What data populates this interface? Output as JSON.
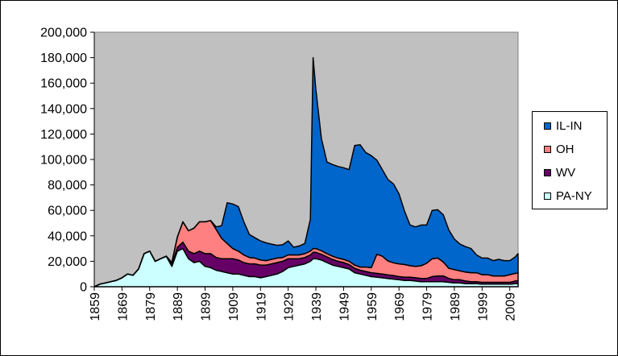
{
  "chart_data": {
    "type": "area",
    "stacked": true,
    "xlabel": "",
    "ylabel": "",
    "ylim": [
      0,
      200000
    ],
    "xlim": [
      1859,
      2012
    ],
    "grid": false,
    "legend_position": "right",
    "plot_background": "#c0c0c0",
    "y_ticks": [
      "0",
      "20,000",
      "40,000",
      "60,000",
      "80,000",
      "100,000",
      "120,000",
      "140,000",
      "160,000",
      "180,000",
      "200,000"
    ],
    "x_ticks": [
      "1859",
      "1869",
      "1879",
      "1889",
      "1899",
      "1909",
      "1919",
      "1929",
      "1939",
      "1949",
      "1959",
      "1969",
      "1979",
      "1989",
      "1999",
      "2009"
    ],
    "x": [
      1859,
      1861,
      1863,
      1865,
      1867,
      1869,
      1871,
      1873,
      1875,
      1877,
      1879,
      1881,
      1883,
      1885,
      1887,
      1889,
      1891,
      1893,
      1895,
      1897,
      1899,
      1901,
      1903,
      1905,
      1907,
      1909,
      1911,
      1913,
      1915,
      1917,
      1919,
      1921,
      1923,
      1925,
      1927,
      1929,
      1931,
      1933,
      1935,
      1937,
      1938,
      1939,
      1941,
      1943,
      1945,
      1947,
      1949,
      1951,
      1953,
      1955,
      1957,
      1959,
      1961,
      1963,
      1965,
      1967,
      1969,
      1971,
      1973,
      1975,
      1977,
      1979,
      1981,
      1983,
      1985,
      1987,
      1989,
      1991,
      1993,
      1995,
      1997,
      1999,
      2001,
      2003,
      2005,
      2007,
      2009,
      2011,
      2012
    ],
    "series": [
      {
        "name": "PA-NY",
        "color": "#ccffff",
        "values": [
          0,
          2000,
          3000,
          4000,
          5000,
          7000,
          10000,
          9000,
          14000,
          26000,
          28000,
          20000,
          22000,
          24000,
          16000,
          28000,
          30000,
          22000,
          19000,
          20000,
          16000,
          15000,
          13000,
          12000,
          11000,
          10000,
          10000,
          9000,
          8000,
          8000,
          7000,
          8000,
          9000,
          10000,
          12000,
          15000,
          16000,
          17000,
          18000,
          20000,
          22000,
          22000,
          21000,
          19000,
          17000,
          16000,
          15000,
          14000,
          11000,
          10000,
          9000,
          8000,
          7500,
          7000,
          6500,
          6000,
          5500,
          5000,
          5000,
          4500,
          4000,
          4000,
          4000,
          4000,
          4000,
          3500,
          3000,
          3000,
          2500,
          2500,
          2500,
          2000,
          2000,
          2000,
          2000,
          2000,
          2000,
          2500,
          2500
        ]
      },
      {
        "name": "WV",
        "color": "#660066",
        "values": [
          0,
          0,
          0,
          0,
          0,
          0,
          0,
          0,
          0,
          0,
          0,
          0,
          0,
          0,
          1000,
          3000,
          5000,
          6000,
          7000,
          8000,
          10000,
          11000,
          10000,
          10000,
          11000,
          12000,
          11000,
          10000,
          10000,
          10000,
          10000,
          9000,
          9000,
          9000,
          8000,
          7000,
          6000,
          5000,
          5000,
          5000,
          5000,
          5000,
          4500,
          4500,
          4500,
          4000,
          4000,
          3500,
          3500,
          3000,
          3000,
          3000,
          3000,
          3000,
          2800,
          2800,
          2500,
          2500,
          2500,
          2500,
          2500,
          2500,
          4000,
          4500,
          4500,
          3000,
          2500,
          2500,
          2000,
          1500,
          1500,
          1500,
          1500,
          1500,
          1500,
          1500,
          1500,
          2000,
          2500
        ]
      },
      {
        "name": "OH",
        "color": "#ff8080",
        "values": [
          0,
          0,
          0,
          0,
          0,
          0,
          0,
          0,
          0,
          0,
          0,
          0,
          0,
          0,
          2000,
          8000,
          16000,
          16000,
          20000,
          23000,
          25000,
          26000,
          22000,
          16000,
          12000,
          8000,
          7000,
          6000,
          5000,
          4500,
          4000,
          3500,
          3500,
          3500,
          3000,
          3000,
          3000,
          3000,
          3000,
          3000,
          3000,
          3000,
          2800,
          2500,
          2500,
          2500,
          2500,
          2500,
          2500,
          2500,
          3500,
          4000,
          15000,
          14000,
          11000,
          10000,
          10000,
          10000,
          9000,
          9000,
          10000,
          12000,
          14000,
          14000,
          11000,
          8000,
          8000,
          7000,
          7000,
          7000,
          7000,
          6000,
          6000,
          5000,
          5000,
          5000,
          6000,
          6000,
          6000
        ]
      },
      {
        "name": "IL-IN",
        "color": "#0066cc",
        "values": [
          0,
          0,
          0,
          0,
          0,
          0,
          0,
          0,
          0,
          0,
          0,
          0,
          0,
          0,
          0,
          0,
          0,
          0,
          0,
          0,
          0,
          0,
          2000,
          10000,
          32000,
          35000,
          35000,
          26000,
          18000,
          16000,
          15000,
          14000,
          12000,
          10000,
          10000,
          11000,
          6000,
          7000,
          8000,
          25000,
          150000,
          125000,
          88000,
          72000,
          72000,
          72000,
          72000,
          72000,
          94000,
          96000,
          90000,
          88000,
          74000,
          68000,
          64000,
          62000,
          55000,
          42000,
          32000,
          31000,
          32000,
          30000,
          38000,
          38000,
          37000,
          30000,
          24000,
          21000,
          20000,
          19000,
          14000,
          13000,
          13000,
          12000,
          13000,
          12000,
          11000,
          13000,
          15000
        ]
      }
    ]
  }
}
